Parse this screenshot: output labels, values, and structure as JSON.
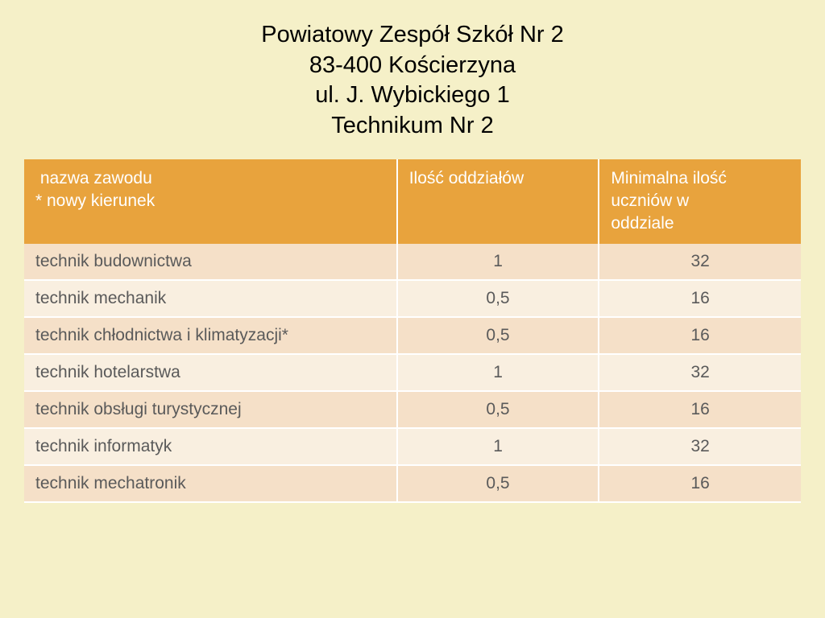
{
  "title": {
    "line1": "Powiatowy Zespół Szkół Nr 2",
    "line2": "83-400 Kościerzyna",
    "line3": "ul. J. Wybickiego 1",
    "line4": "Technikum Nr 2"
  },
  "table": {
    "header": {
      "col1_line1": " nazwa zawodu",
      "col1_line2": "* nowy kierunek",
      "col2": "Ilość oddziałów",
      "col3_line1": "Minimalna ilość",
      "col3_line2": "uczniów w",
      "col3_line3": "oddziale"
    },
    "rows": [
      {
        "name": "technik budownictwa",
        "oddz": "1",
        "min": "32"
      },
      {
        "name": "technik mechanik",
        "oddz": "0,5",
        "min": "16"
      },
      {
        "name": "technik chłodnictwa i klimatyzacji*",
        "oddz": "0,5",
        "min": "16"
      },
      {
        "name": "technik hotelarstwa",
        "oddz": "1",
        "min": "32"
      },
      {
        "name": "technik obsługi turystycznej",
        "oddz": "0,5",
        "min": "16"
      },
      {
        "name": "technik informatyk",
        "oddz": "1",
        "min": "32"
      },
      {
        "name": "technik mechatronik",
        "oddz": "0,5",
        "min": "16"
      }
    ]
  },
  "style": {
    "background_color": "#f5f0c8",
    "header_bg": "#e8a33d",
    "header_fg": "#ffffff",
    "row_odd_bg": "#f5e0c8",
    "row_even_bg": "#f9efe0",
    "text_color": "#5a5a5a",
    "title_fontsize": 29,
    "cell_fontsize": 21,
    "col_widths": [
      "48%",
      "26%",
      "26%"
    ]
  }
}
